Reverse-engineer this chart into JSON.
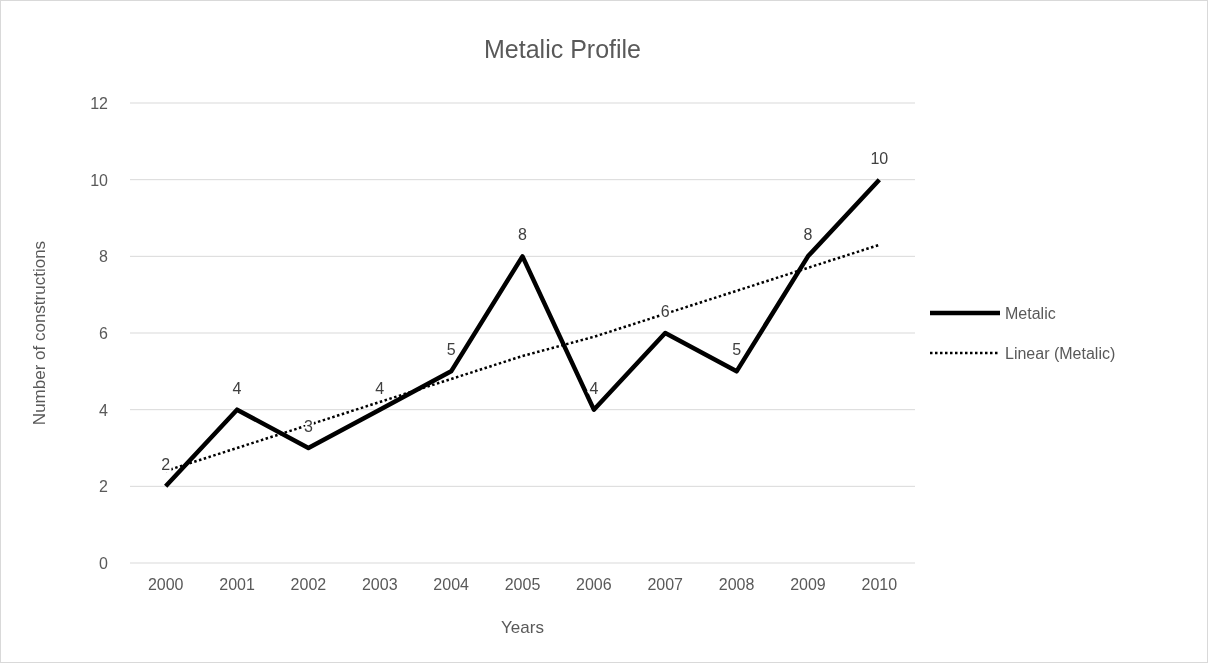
{
  "chart_data": {
    "type": "line",
    "title": "Metalic Profile",
    "xlabel": "Years",
    "ylabel": "Number of constructions",
    "categories": [
      "2000",
      "2001",
      "2002",
      "2003",
      "2004",
      "2005",
      "2006",
      "2007",
      "2008",
      "2009",
      "2010"
    ],
    "series": [
      {
        "name": "Metalic",
        "color": "#000000",
        "line_style": "solid",
        "values": [
          2,
          4,
          3,
          4,
          5,
          8,
          4,
          6,
          5,
          8,
          10
        ],
        "value_labels": [
          "2",
          "4",
          "3",
          "4",
          "5",
          "8",
          "4",
          "6",
          "5",
          "8",
          "10"
        ]
      },
      {
        "name": "Linear (Metalic)",
        "color": "#000000",
        "line_style": "dotted",
        "values": [
          2.4,
          3.0,
          3.6,
          4.2,
          4.8,
          5.4,
          5.9,
          6.5,
          7.1,
          7.7,
          8.3
        ]
      }
    ],
    "ylim": [
      0,
      12
    ],
    "yticks": [
      0,
      2,
      4,
      6,
      8,
      10,
      12
    ],
    "grid": "y",
    "legend": "right",
    "marker": "none"
  }
}
